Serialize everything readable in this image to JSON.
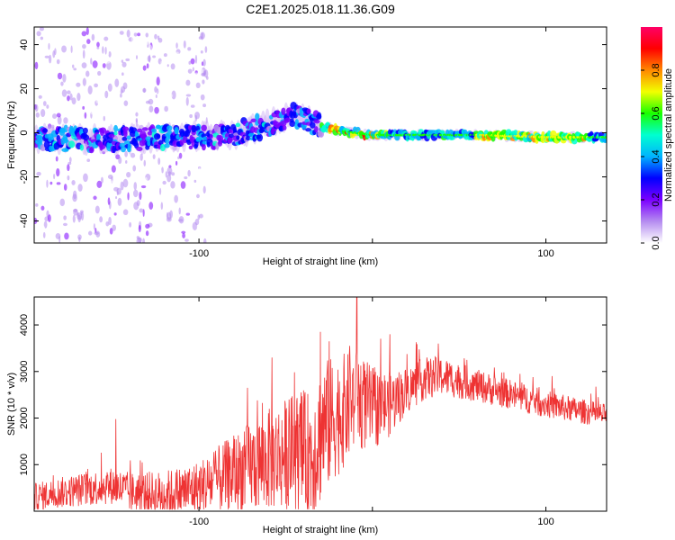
{
  "title": "C2E1.2025.018.11.36.G09",
  "chart_data": [
    {
      "type": "heatmap",
      "xlabel": "Height of straight line (km)",
      "ylabel": "Frequency (Hz)",
      "xlim": [
        -195,
        135
      ],
      "ylim": [
        -50,
        48
      ],
      "x_ticks": [
        -100,
        0,
        100
      ],
      "x_tick_labels": [
        "-100",
        "",
        "100"
      ],
      "y_ticks": [
        -40,
        -20,
        0,
        20,
        40
      ],
      "y_tick_labels": [
        "-40",
        "-20",
        "0",
        "20",
        "40"
      ],
      "ridge": {
        "x": [
          -195,
          -150,
          -110,
          -80,
          -60,
          -45,
          -35,
          -20,
          -10,
          0,
          20,
          60,
          100,
          135
        ],
        "y": [
          -3,
          -3,
          -2,
          -1,
          4,
          8,
          5,
          1,
          0,
          -1,
          -1,
          -1,
          -2,
          -2
        ]
      },
      "colorbar": {
        "label": "Normalized spectral amplitude",
        "range": [
          0,
          1
        ],
        "ticks": [
          0.0,
          0.2,
          0.4,
          0.6,
          0.8
        ],
        "tick_labels": [
          "0.0",
          "0.2",
          "0.4",
          "0.6",
          "0.8"
        ],
        "colors": [
          "#ffffff",
          "#b58cf0",
          "#7b00ff",
          "#0000ff",
          "#00b3ff",
          "#00ffd0",
          "#19ff00",
          "#f2ff00",
          "#ff8800",
          "#ff0000",
          "#ff0066"
        ]
      }
    },
    {
      "type": "line",
      "xlabel": "Height of straight line (km)",
      "ylabel": "SNR (10 * v/v)",
      "xlim": [
        -195,
        135
      ],
      "ylim": [
        0,
        4600
      ],
      "x_ticks": [
        -100,
        0,
        100
      ],
      "x_tick_labels": [
        "-100",
        "",
        "100"
      ],
      "y_ticks": [
        1000,
        2000,
        3000,
        4000
      ],
      "y_tick_labels": [
        "1000",
        "2000",
        "3000",
        "4000"
      ],
      "color": "#ee3333",
      "trend": {
        "x": [
          -195,
          -180,
          -160,
          -150,
          -140,
          -120,
          -100,
          -80,
          -60,
          -45,
          -35,
          -28,
          -22,
          -15,
          -10,
          -5,
          0,
          10,
          20,
          30,
          40,
          60,
          80,
          100,
          120,
          135
        ],
        "y": [
          300,
          400,
          500,
          550,
          400,
          350,
          500,
          800,
          1100,
          1300,
          1200,
          1800,
          2000,
          2200,
          2400,
          2300,
          2200,
          2300,
          2600,
          2850,
          2900,
          2700,
          2500,
          2300,
          2150,
          2050
        ]
      },
      "spread": {
        "x": [
          -195,
          -150,
          -100,
          -60,
          -40,
          -30,
          -10,
          0,
          20,
          60,
          135
        ],
        "y": [
          300,
          400,
          600,
          1100,
          1300,
          1500,
          1100,
          900,
          500,
          350,
          250
        ]
      },
      "peaks": [
        {
          "x": -148,
          "y": 1980
        },
        {
          "x": -72,
          "y": 2650
        },
        {
          "x": -58,
          "y": 3300
        },
        {
          "x": -30,
          "y": 3850
        },
        {
          "x": -25,
          "y": 3650
        },
        {
          "x": -13,
          "y": 3550
        },
        {
          "x": -9,
          "y": 4600
        },
        {
          "x": 10,
          "y": 3800
        },
        {
          "x": 38,
          "y": 3600
        }
      ]
    }
  ]
}
